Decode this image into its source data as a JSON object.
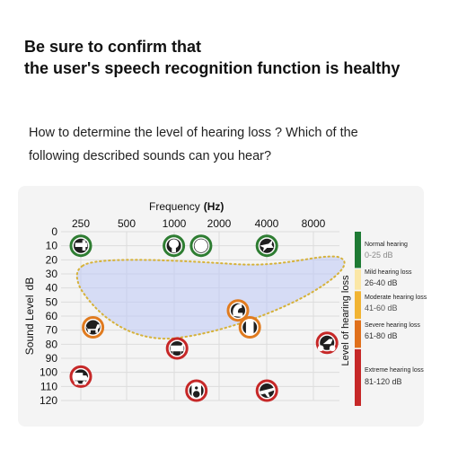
{
  "header": {
    "line1": "Be sure to confirm that",
    "line2": "the user's speech recognition function is healthy"
  },
  "question": {
    "line1": "How to determine the level of hearing loss ? Which of the",
    "line2": "following described sounds can you hear?"
  },
  "chart_data": {
    "type": "scatter",
    "title": "",
    "xlabel": "Frequency",
    "xlabel_unit": "(Hz)",
    "ylabel": "Sound Level",
    "ylabel_unit": "dB",
    "x_ticks": [
      "250",
      "500",
      "1000",
      "2000",
      "4000",
      "8000"
    ],
    "y_ticks": [
      "0",
      "10",
      "20",
      "30",
      "40",
      "50",
      "60",
      "70",
      "80",
      "90",
      "100",
      "110",
      "120"
    ],
    "ylim": [
      0,
      120
    ],
    "grid": true,
    "speech_banana": true,
    "points": [
      {
        "icon": "faucet-icon",
        "x": 250,
        "y": 10,
        "color": "#2e7d32"
      },
      {
        "icon": "tree-icon",
        "x": 1000,
        "y": 10,
        "color": "#2e7d32"
      },
      {
        "icon": "clock-icon",
        "x": 1500,
        "y": 10,
        "color": "#2e7d32"
      },
      {
        "icon": "bird-icon",
        "x": 4000,
        "y": 10,
        "color": "#2e7d32"
      },
      {
        "icon": "dog-icon",
        "x": 300,
        "y": 68,
        "color": "#e07b1f"
      },
      {
        "icon": "telephone-icon",
        "x": 2600,
        "y": 56,
        "color": "#e07b1f"
      },
      {
        "icon": "phone-icon",
        "x": 3100,
        "y": 68,
        "color": "#e07b1f"
      },
      {
        "icon": "piano-icon",
        "x": 1050,
        "y": 83,
        "color": "#c62828"
      },
      {
        "icon": "motorcycle-icon",
        "x": 9800,
        "y": 79,
        "color": "#c62828"
      },
      {
        "icon": "truck-icon",
        "x": 250,
        "y": 103,
        "color": "#c62828"
      },
      {
        "icon": "speaker-icon",
        "x": 1400,
        "y": 113,
        "color": "#c62828"
      },
      {
        "icon": "airplane-icon",
        "x": 4000,
        "y": 113,
        "color": "#c62828"
      }
    ],
    "legend_title": "Level of hearing loss",
    "legend": [
      {
        "name": "Normal hearing",
        "range": "0-25 dB",
        "from": 0,
        "to": 25,
        "color": "#1e7a34"
      },
      {
        "name": "Mild hearing loss",
        "range": "26-40 dB",
        "from": 26,
        "to": 40,
        "color": "#fbe7a6"
      },
      {
        "name": "Moderate hearing loss",
        "range": "41-60 dB",
        "from": 41,
        "to": 60,
        "color": "#f1b433"
      },
      {
        "name": "Severe hearing loss",
        "range": "61-80 dB",
        "from": 61,
        "to": 80,
        "color": "#e0701b"
      },
      {
        "name": "Extreme hearing loss",
        "range": "81-120 dB",
        "from": 81,
        "to": 120,
        "color": "#c62828"
      }
    ]
  }
}
